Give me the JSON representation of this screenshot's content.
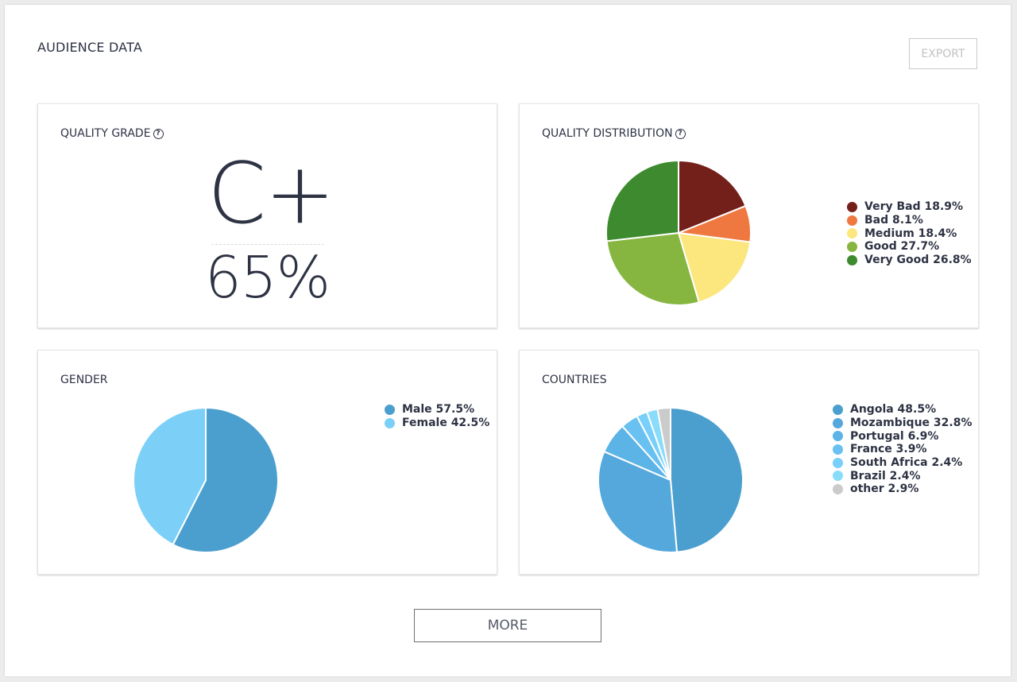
{
  "page": {
    "title": "AUDIENCE DATA",
    "export_label": "EXPORT",
    "more_label": "MORE"
  },
  "quality_grade": {
    "title": "QUALITY GRADE",
    "help_icon": "?",
    "grade": "C+",
    "percent": "65%"
  },
  "quality_distribution": {
    "title": "QUALITY DISTRIBUTION",
    "help_icon": "?"
  },
  "gender": {
    "title": "GENDER"
  },
  "countries": {
    "title": "COUNTRIES"
  },
  "chart_data": [
    {
      "type": "pie",
      "id": "quality",
      "labels": [
        "Very Bad 18.9%",
        "Bad 8.1%",
        "Medium 18.4%",
        "Good 27.7%",
        "Very Good 26.8%"
      ],
      "categories": [
        "Very Bad",
        "Bad",
        "Medium",
        "Good",
        "Very Good"
      ],
      "values": [
        18.9,
        8.1,
        18.4,
        27.7,
        26.8
      ],
      "colors": [
        "#74201a",
        "#ef7840",
        "#fce67e",
        "#86b640",
        "#3d8b2e"
      ]
    },
    {
      "type": "pie",
      "id": "gender",
      "labels": [
        "Male 57.5%",
        "Female 42.5%"
      ],
      "categories": [
        "Male",
        "Female"
      ],
      "values": [
        57.5,
        42.5
      ],
      "colors": [
        "#4b9fcf",
        "#7cd0f8"
      ]
    },
    {
      "type": "pie",
      "id": "countries",
      "labels": [
        "Angola 48.5%",
        "Mozambique 32.8%",
        "Portugal 6.9%",
        "France 3.9%",
        "South Africa 2.4%",
        "Brazil 2.4%",
        "other 2.9%"
      ],
      "categories": [
        "Angola",
        "Mozambique",
        "Portugal",
        "France",
        "South Africa",
        "Brazil",
        "other"
      ],
      "values": [
        48.5,
        32.8,
        6.9,
        3.9,
        2.4,
        2.4,
        2.9
      ],
      "colors": [
        "#4b9fcf",
        "#55a8dc",
        "#5cb3e6",
        "#69c1f1",
        "#78cff9",
        "#8adcfb",
        "#cbcbcb"
      ]
    }
  ]
}
